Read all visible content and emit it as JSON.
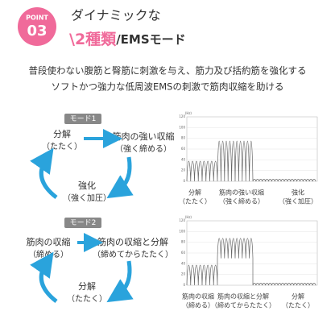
{
  "header": {
    "point": "POINT",
    "number": "03",
    "title_line1": "ダイナミックな",
    "title_open": "\\",
    "title_highlight": "2種類",
    "title_rest": "/EMSモード"
  },
  "description": [
    "普段使わない腹筋と臀筋に刺激を与え、筋力及び括約筋を強化する",
    "ソフトかつ強力な低周波EMSの刺激で筋肉収縮を助ける"
  ],
  "graph": {
    "unit": "(Hz)",
    "ticks": [
      "120",
      "100",
      "80",
      "60",
      "40",
      "20",
      "0"
    ]
  },
  "modes": [
    {
      "label": "モード1",
      "steps": [
        {
          "name": "分解",
          "sub": "（たたく）"
        },
        {
          "name": "筋肉の強い収縮",
          "sub": "（強く締める）"
        },
        {
          "name": "強化",
          "sub": "（強く加圧）"
        }
      ],
      "graph_labels": [
        {
          "name": "分解",
          "sub": "（たたく）"
        },
        {
          "name": "筋肉の強い収縮",
          "sub": "（強く締める）"
        },
        {
          "name": "強化",
          "sub": "（強く加圧）"
        }
      ]
    },
    {
      "label": "モード2",
      "steps": [
        {
          "name": "筋肉の収縮",
          "sub": "（締める）"
        },
        {
          "name": "筋肉の収縮と分解",
          "sub": "（締めてからたたく）"
        },
        {
          "name": "分解",
          "sub": "（たたく）"
        }
      ],
      "graph_labels": [
        {
          "name": "筋肉の収縮",
          "sub": "（締める）"
        },
        {
          "name": "筋肉の収縮と分解",
          "sub": "（締めてからたたく）"
        },
        {
          "name": "分解",
          "sub": "（たたく）"
        }
      ]
    }
  ]
}
